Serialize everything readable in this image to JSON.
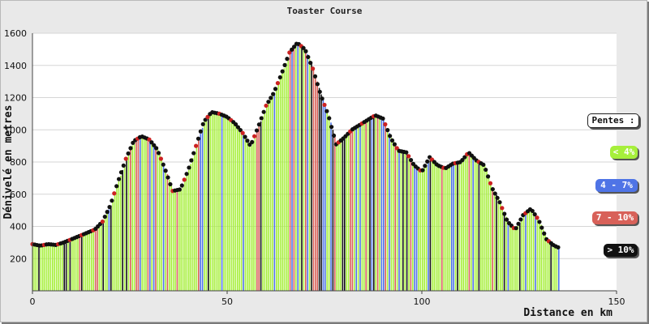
{
  "chart_data": {
    "type": "area",
    "title": "Toaster Course",
    "xlabel": "Distance en km",
    "ylabel": "Dénivelé en metres",
    "xlim": [
      0,
      150
    ],
    "ylim": [
      0,
      1600
    ],
    "x_ticks": [
      "0",
      "50",
      "100",
      "150"
    ],
    "y_ticks": [
      "200",
      "400",
      "600",
      "800",
      "1000",
      "1200",
      "1400",
      "1600"
    ],
    "grid": "horizontal",
    "legend_position": "right",
    "legend": {
      "title": "Pentes :",
      "items": [
        {
          "label": "< 4%",
          "color": "#a6ef3b"
        },
        {
          "label": "4 - 7%",
          "color": "#4f74e6"
        },
        {
          "label": "7 - 10%",
          "color": "#d86159"
        },
        {
          "label": "> 10%",
          "color": "#111111"
        }
      ]
    },
    "x": [
      0,
      2,
      4,
      6,
      8,
      10,
      12,
      14,
      16,
      18,
      20,
      22,
      24,
      26,
      28,
      30,
      32,
      34,
      36,
      38,
      40,
      42,
      44,
      46,
      48,
      50,
      52,
      54,
      56,
      58,
      60,
      62,
      64,
      66,
      68,
      70,
      72,
      74,
      76,
      78,
      80,
      82,
      84,
      86,
      88,
      90,
      92,
      94,
      96,
      98,
      100,
      102,
      104,
      106,
      108,
      110,
      112,
      114,
      116,
      118,
      120,
      122,
      124,
      126,
      128,
      130,
      132,
      134,
      135
    ],
    "values": [
      290,
      280,
      290,
      285,
      300,
      320,
      340,
      360,
      380,
      430,
      530,
      680,
      820,
      930,
      960,
      940,
      880,
      760,
      620,
      630,
      750,
      900,
      1050,
      1110,
      1100,
      1080,
      1040,
      980,
      900,
      1020,
      1150,
      1230,
      1350,
      1480,
      1540,
      1500,
      1380,
      1220,
      1090,
      910,
      950,
      1000,
      1030,
      1060,
      1090,
      1070,
      950,
      870,
      860,
      780,
      740,
      830,
      780,
      760,
      790,
      800,
      860,
      810,
      780,
      640,
      550,
      430,
      380,
      470,
      510,
      440,
      320,
      280,
      270
    ]
  }
}
